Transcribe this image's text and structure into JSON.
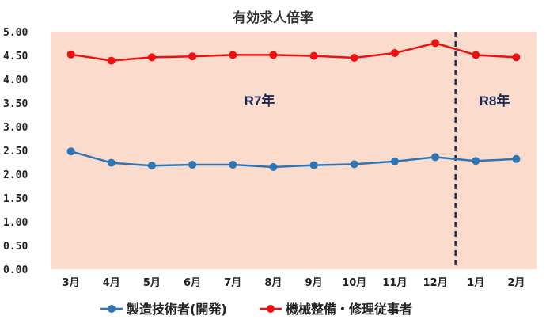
{
  "chart_data": {
    "type": "line",
    "title": "有効求人倍率",
    "categories": [
      "3月",
      "4月",
      "5月",
      "6月",
      "7月",
      "8月",
      "9月",
      "10月",
      "11月",
      "12月",
      "1月",
      "2月"
    ],
    "ylim": [
      0,
      5
    ],
    "yticks": [
      "0.00",
      "0.50",
      "1.00",
      "1.50",
      "2.00",
      "2.50",
      "3.00",
      "3.50",
      "4.00",
      "4.50",
      "5.00"
    ],
    "grid": false,
    "legend_position": "bottom",
    "series": [
      {
        "name": "製造技術者(開発)",
        "color": "#2e75b6",
        "values": [
          2.48,
          2.24,
          2.18,
          2.2,
          2.2,
          2.15,
          2.19,
          2.21,
          2.27,
          2.36,
          2.28,
          2.32
        ]
      },
      {
        "name": "機械整備・修理従事者",
        "color": "#ee1111",
        "values": [
          4.52,
          4.39,
          4.46,
          4.48,
          4.51,
          4.51,
          4.49,
          4.45,
          4.55,
          4.76,
          4.51,
          4.46
        ]
      }
    ],
    "divider_after_category": "12月",
    "period_labels": [
      "R7年",
      "R8年"
    ],
    "plot_background": "#fbdccc"
  }
}
